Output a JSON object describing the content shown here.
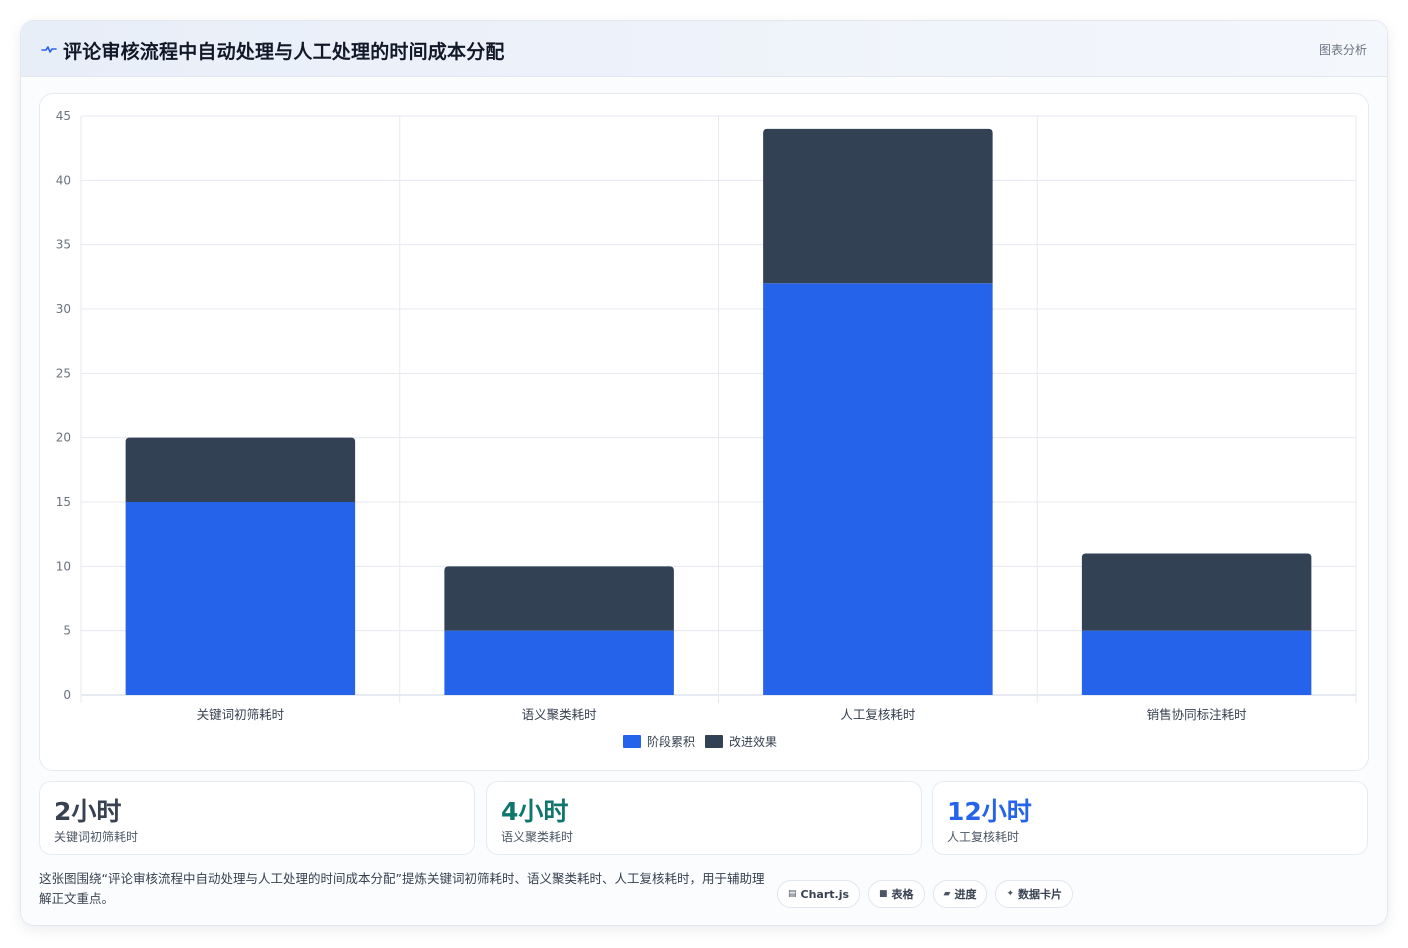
{
  "header": {
    "title": "评论审核流程中自动处理与人工处理的时间成本分配",
    "tag": "图表分析"
  },
  "colors": {
    "series_1": "#2563eb",
    "series_2": "#334155",
    "accent_teal": "#0f766e",
    "accent_blue": "#2563eb",
    "stat_dark": "#374151"
  },
  "chart_data": {
    "type": "bar",
    "stacked": true,
    "categories": [
      "关键词初筛耗时",
      "语义聚类耗时",
      "人工复核耗时",
      "销售协同标注耗时"
    ],
    "series": [
      {
        "name": "阶段累积",
        "values": [
          15,
          5,
          32,
          5
        ]
      },
      {
        "name": "改进效果",
        "values": [
          5,
          5,
          12,
          6
        ]
      }
    ],
    "ylim": [
      0,
      45
    ],
    "yticks": [
      0,
      5,
      10,
      15,
      20,
      25,
      30,
      35,
      40,
      45
    ],
    "grid": true,
    "legend": "bottom"
  },
  "stats": [
    {
      "value": "2小时",
      "label": "关键词初筛耗时"
    },
    {
      "value": "4小时",
      "label": "语义聚类耗时"
    },
    {
      "value": "12小时",
      "label": "人工复核耗时"
    }
  ],
  "footer": {
    "description": "这张图围绕“评论审核流程中自动处理与人工处理的时间成本分配”提炼关键词初筛耗时、语义聚类耗时、人工复核耗时，用于辅助理解正文重点。",
    "chips": [
      {
        "icon": "chart-icon",
        "glyph": "▤",
        "label": "Chart.js"
      },
      {
        "icon": "table-icon",
        "glyph": "■",
        "label": "表格"
      },
      {
        "icon": "progress-icon",
        "glyph": "▰",
        "label": "进度"
      },
      {
        "icon": "sparkle-icon",
        "glyph": "✦",
        "label": "数据卡片"
      }
    ]
  }
}
